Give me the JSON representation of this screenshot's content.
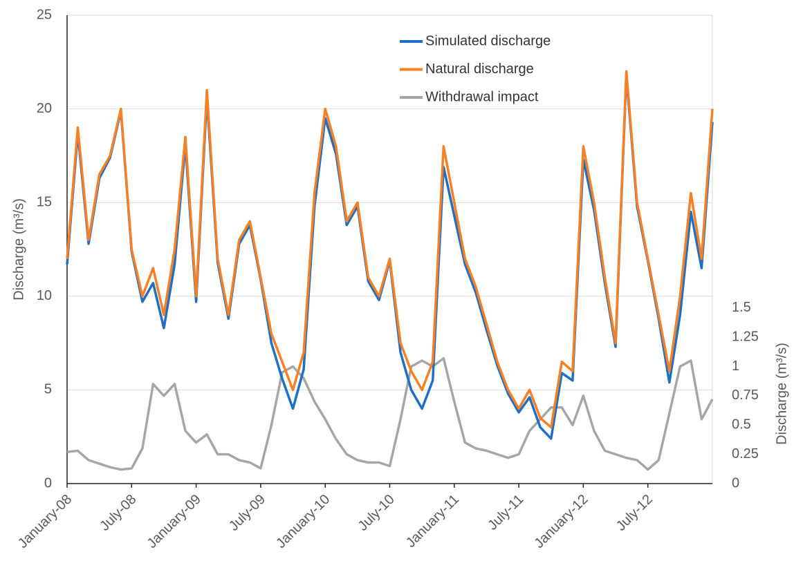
{
  "chart_data": {
    "type": "line",
    "y_label": "Discharge (m³/s)",
    "y2_label": "Discharge (m³/s)",
    "x": [
      "2008-01",
      "2008-02",
      "2008-03",
      "2008-04",
      "2008-05",
      "2008-06",
      "2008-07",
      "2008-08",
      "2008-09",
      "2008-10",
      "2008-11",
      "2008-12",
      "2009-01",
      "2009-02",
      "2009-03",
      "2009-04",
      "2009-05",
      "2009-06",
      "2009-07",
      "2009-08",
      "2009-09",
      "2009-10",
      "2009-11",
      "2009-12",
      "2010-01",
      "2010-02",
      "2010-03",
      "2010-04",
      "2010-05",
      "2010-06",
      "2010-07",
      "2010-08",
      "2010-09",
      "2010-10",
      "2010-11",
      "2010-12",
      "2011-01",
      "2011-02",
      "2011-03",
      "2011-04",
      "2011-05",
      "2011-06",
      "2011-07",
      "2011-08",
      "2011-09",
      "2011-10",
      "2011-11",
      "2011-12",
      "2012-01",
      "2012-02",
      "2012-03",
      "2012-04",
      "2012-05",
      "2012-06",
      "2012-07",
      "2012-08",
      "2012-09",
      "2012-10",
      "2012-11",
      "2012-12",
      "2013-01"
    ],
    "xlim": [
      "2008-01",
      "2013-01"
    ],
    "xticks": [
      {
        "value": "2008-01",
        "label": "January-08"
      },
      {
        "value": "2008-07",
        "label": "July-08"
      },
      {
        "value": "2009-01",
        "label": "January-09"
      },
      {
        "value": "2009-07",
        "label": "July-09"
      },
      {
        "value": "2010-01",
        "label": "January-10"
      },
      {
        "value": "2010-07",
        "label": "July-10"
      },
      {
        "value": "2011-01",
        "label": "January-11"
      },
      {
        "value": "2011-07",
        "label": "July-11"
      },
      {
        "value": "2012-01",
        "label": "January-12"
      },
      {
        "value": "2012-07",
        "label": "July-12"
      }
    ],
    "ylim": [
      0,
      25
    ],
    "yticks": [
      0,
      5,
      10,
      15,
      20,
      25
    ],
    "y2lim": [
      0,
      4
    ],
    "y2ticks": [
      0,
      0.25,
      0.5,
      0.75,
      1,
      1.25,
      1.5
    ],
    "grid": true,
    "legend": "top-right",
    "series": [
      {
        "name": "Simulated discharge",
        "color": "#1f6fc5",
        "values": [
          11.7,
          18.7,
          12.8,
          16.3,
          17.4,
          19.9,
          12.4,
          9.7,
          10.7,
          8.3,
          11.7,
          18.1,
          9.7,
          20.6,
          11.8,
          8.8,
          12.8,
          13.8,
          10.9,
          7.5,
          5.6,
          4.0,
          6.1,
          14.8,
          19.5,
          17.6,
          13.8,
          14.8,
          10.8,
          9.8,
          11.9,
          7.0,
          5.0,
          4.0,
          5.5,
          16.9,
          14.3,
          11.7,
          10.2,
          8.2,
          6.3,
          4.8,
          3.8,
          4.6,
          3.0,
          2.4,
          5.9,
          5.5,
          17.3,
          14.6,
          10.7,
          7.3,
          21.8,
          14.8,
          11.9,
          8.8,
          5.4,
          9.0,
          14.5,
          11.5,
          19.3
        ]
      },
      {
        "name": "Natural discharge",
        "color": "#f58025",
        "values": [
          12,
          19,
          13,
          16.5,
          17.5,
          20,
          12.5,
          10,
          11.5,
          9,
          12.5,
          18.5,
          10,
          21,
          12,
          9,
          13,
          14,
          11,
          8,
          6.5,
          5,
          7,
          15.5,
          20,
          18,
          14,
          15,
          11,
          10,
          12,
          7.5,
          6,
          5,
          6.5,
          18,
          15,
          12,
          10.5,
          8.5,
          6.5,
          5,
          4,
          5,
          3.5,
          3,
          6.5,
          6,
          18,
          15,
          11,
          7.5,
          22,
          15,
          12,
          9,
          6,
          10,
          15.5,
          12,
          20
        ]
      },
      {
        "name": "Withdrawal impact",
        "color": "#a6a6a6",
        "axis": "y2",
        "values": [
          0.27,
          0.28,
          0.2,
          0.17,
          0.14,
          0.12,
          0.13,
          0.3,
          0.85,
          0.75,
          0.85,
          0.45,
          0.35,
          0.42,
          0.25,
          0.25,
          0.2,
          0.18,
          0.13,
          0.5,
          0.95,
          1.0,
          0.9,
          0.7,
          0.55,
          0.38,
          0.25,
          0.2,
          0.18,
          0.18,
          0.15,
          0.55,
          1.0,
          1.05,
          1.0,
          1.07,
          0.7,
          0.35,
          0.3,
          0.28,
          0.25,
          0.22,
          0.25,
          0.45,
          0.55,
          0.65,
          0.65,
          0.5,
          0.75,
          0.45,
          0.28,
          0.25,
          0.22,
          0.2,
          0.12,
          0.2,
          0.6,
          1.0,
          1.05,
          0.55,
          0.72
        ]
      }
    ]
  }
}
